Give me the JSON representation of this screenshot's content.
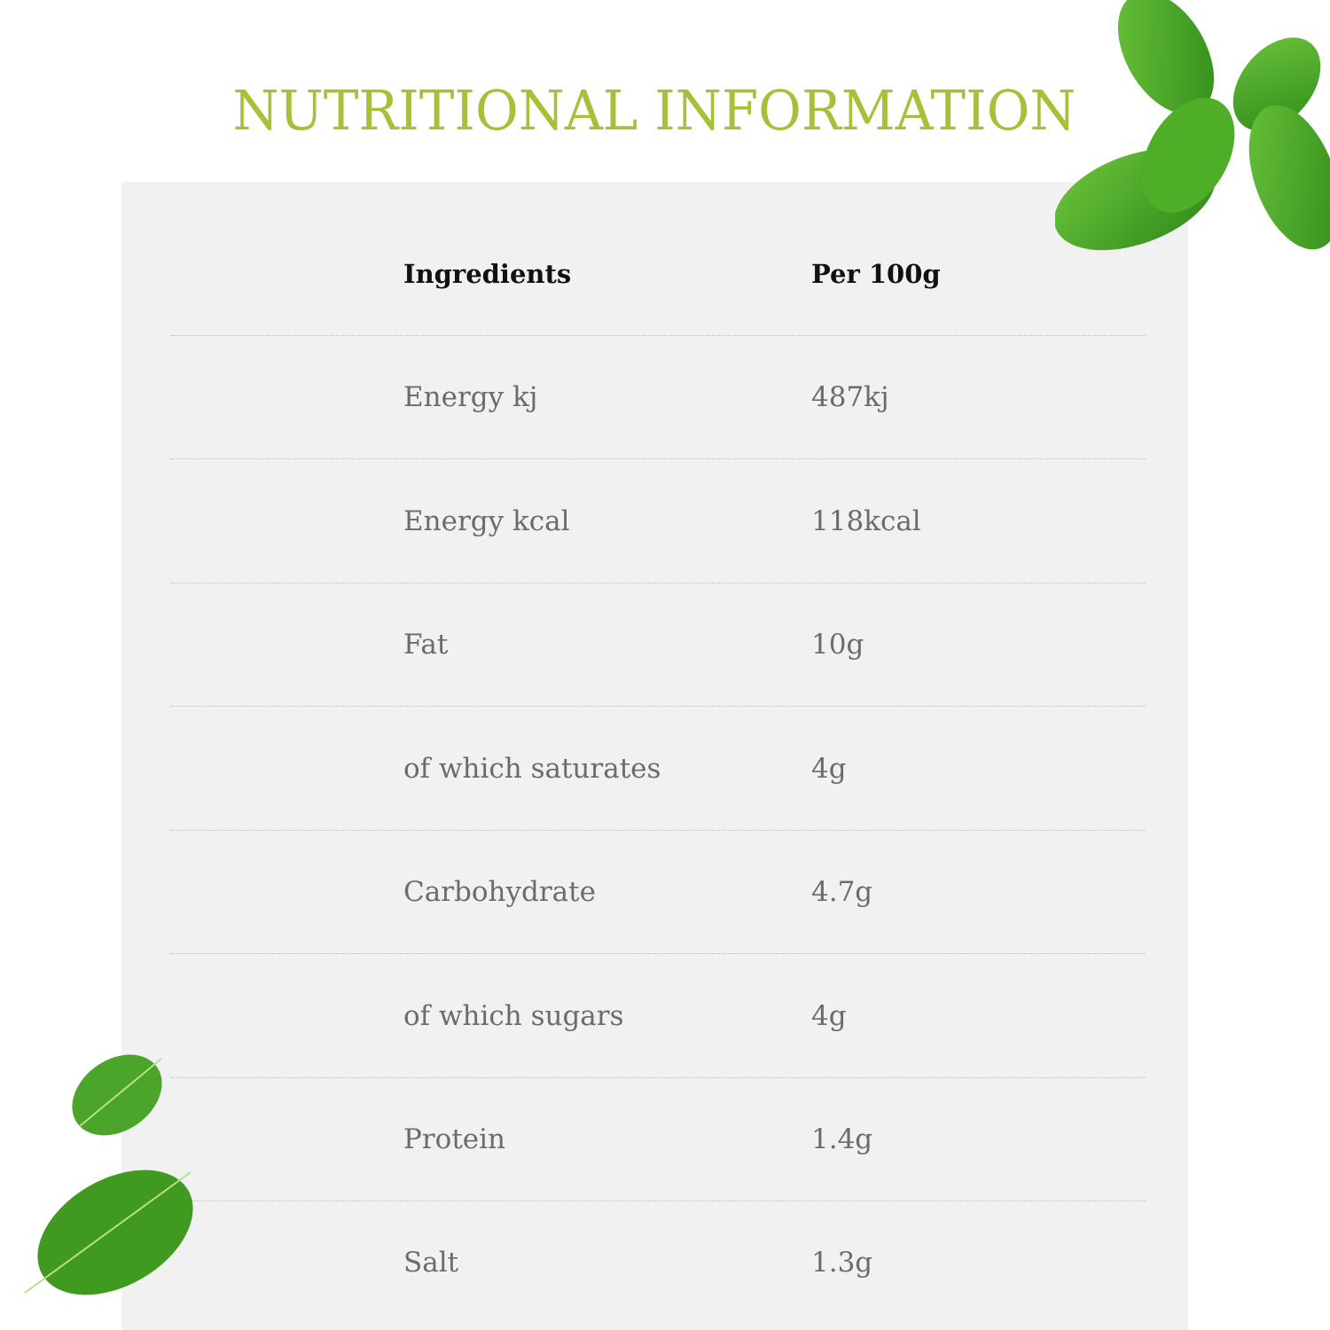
{
  "title": "NUTRITIONAL INFORMATION",
  "colors": {
    "title": "#a5c13a",
    "panel": "#f1f1f1",
    "leaf": "#3f9a1f"
  },
  "table": {
    "headers": [
      "Ingredients",
      "Per 100g"
    ],
    "rows": [
      [
        "Energy kj",
        "487kj"
      ],
      [
        "Energy kcal",
        "118kcal"
      ],
      [
        "Fat",
        "10g"
      ],
      [
        "of which saturates",
        "4g"
      ],
      [
        "Carbohydrate",
        "4.7g"
      ],
      [
        "of which sugars",
        "4g"
      ],
      [
        "Protein",
        "1.4g"
      ],
      [
        "Salt",
        "1.3g"
      ]
    ]
  }
}
